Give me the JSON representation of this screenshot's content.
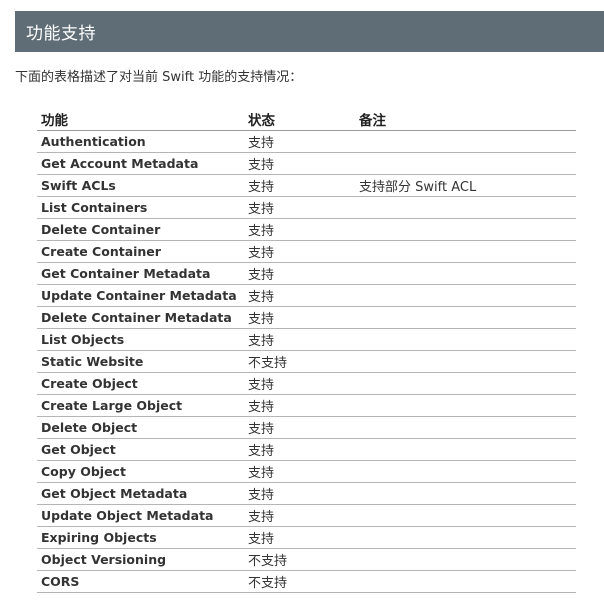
{
  "header": {
    "title": "功能支持"
  },
  "intro": "下面的表格描述了对当前 Swift 功能的支持情况：",
  "table": {
    "headers": {
      "feature": "功能",
      "status": "状态",
      "note": "备注"
    },
    "rows": [
      {
        "feature": "Authentication",
        "status": "支持",
        "note": ""
      },
      {
        "feature": "Get Account Metadata",
        "status": "支持",
        "note": ""
      },
      {
        "feature": "Swift ACLs",
        "status": "支持",
        "note": "支持部分 Swift ACL"
      },
      {
        "feature": "List Containers",
        "status": "支持",
        "note": ""
      },
      {
        "feature": "Delete Container",
        "status": "支持",
        "note": ""
      },
      {
        "feature": "Create Container",
        "status": "支持",
        "note": ""
      },
      {
        "feature": "Get Container Metadata",
        "status": "支持",
        "note": ""
      },
      {
        "feature": "Update Container Metadata",
        "status": "支持",
        "note": ""
      },
      {
        "feature": "Delete Container Metadata",
        "status": "支持",
        "note": ""
      },
      {
        "feature": "List Objects",
        "status": "支持",
        "note": ""
      },
      {
        "feature": "Static Website",
        "status": "不支持",
        "note": ""
      },
      {
        "feature": "Create Object",
        "status": "支持",
        "note": ""
      },
      {
        "feature": "Create Large Object",
        "status": "支持",
        "note": ""
      },
      {
        "feature": "Delete Object",
        "status": "支持",
        "note": ""
      },
      {
        "feature": "Get Object",
        "status": "支持",
        "note": ""
      },
      {
        "feature": "Copy Object",
        "status": "支持",
        "note": ""
      },
      {
        "feature": "Get Object Metadata",
        "status": "支持",
        "note": ""
      },
      {
        "feature": "Update Object Metadata",
        "status": "支持",
        "note": ""
      },
      {
        "feature": "Expiring Objects",
        "status": "支持",
        "note": ""
      },
      {
        "feature": "Object Versioning",
        "status": "不支持",
        "note": ""
      },
      {
        "feature": "CORS",
        "status": "不支持",
        "note": ""
      }
    ]
  }
}
